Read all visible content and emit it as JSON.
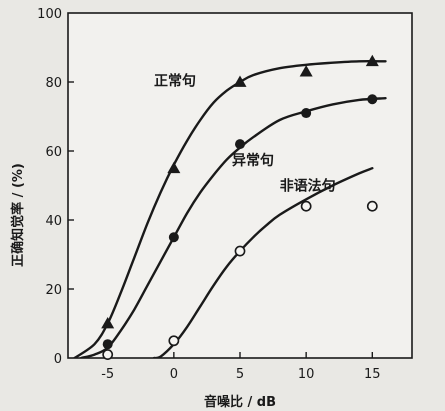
{
  "chart_data": {
    "type": "line",
    "xlabel": "音噪比 / dB",
    "ylabel": "正确知觉率 / (%)",
    "xlim": [
      -8,
      18
    ],
    "ylim": [
      0,
      100
    ],
    "xticks": [
      -5,
      0,
      5,
      10,
      15
    ],
    "yticks": [
      0,
      20,
      40,
      60,
      80,
      100
    ],
    "grid": false,
    "series": [
      {
        "name": "正常句",
        "marker": "triangle",
        "label_at": [
          -1.5,
          79
        ],
        "points": [
          [
            -5,
            10
          ],
          [
            0,
            55
          ],
          [
            5,
            80
          ],
          [
            10,
            83
          ],
          [
            15,
            86
          ]
        ],
        "curve": [
          [
            -7.5,
            0
          ],
          [
            -6,
            4
          ],
          [
            -5,
            10
          ],
          [
            -4,
            19
          ],
          [
            -3,
            29
          ],
          [
            -2,
            39
          ],
          [
            -1,
            48
          ],
          [
            0,
            56
          ],
          [
            1,
            63
          ],
          [
            2,
            69
          ],
          [
            3,
            74
          ],
          [
            4,
            77.5
          ],
          [
            5,
            80
          ],
          [
            6,
            82
          ],
          [
            8,
            84
          ],
          [
            10,
            85
          ],
          [
            12,
            85.6
          ],
          [
            14,
            86
          ],
          [
            16,
            86
          ]
        ]
      },
      {
        "name": "异常句",
        "marker": "filled-circle",
        "label_at": [
          4.4,
          56
        ],
        "points": [
          [
            -5,
            4
          ],
          [
            0,
            35
          ],
          [
            5,
            62
          ],
          [
            10,
            71
          ],
          [
            15,
            75
          ]
        ],
        "curve": [
          [
            -7,
            0
          ],
          [
            -6,
            1
          ],
          [
            -5,
            3
          ],
          [
            -4,
            8
          ],
          [
            -3,
            14
          ],
          [
            -2,
            21
          ],
          [
            -1,
            28
          ],
          [
            0,
            35
          ],
          [
            1,
            42
          ],
          [
            2,
            48
          ],
          [
            3,
            53
          ],
          [
            4,
            57.5
          ],
          [
            5,
            61
          ],
          [
            6,
            64
          ],
          [
            8,
            69
          ],
          [
            10,
            71.5
          ],
          [
            12,
            73.5
          ],
          [
            14,
            74.8
          ],
          [
            16,
            75.3
          ]
        ]
      },
      {
        "name": "非语法句",
        "marker": "open-circle",
        "label_at": [
          8,
          48.5
        ],
        "points": [
          [
            -5,
            1
          ],
          [
            0,
            5
          ],
          [
            5,
            31
          ],
          [
            10,
            44
          ],
          [
            15,
            44
          ]
        ],
        "curve": [
          [
            -1.5,
            0
          ],
          [
            -1,
            0.4
          ],
          [
            0,
            4
          ],
          [
            1,
            9
          ],
          [
            2,
            15
          ],
          [
            3,
            21
          ],
          [
            4,
            26.5
          ],
          [
            5,
            31
          ],
          [
            6,
            35
          ],
          [
            7,
            38.5
          ],
          [
            8,
            41.5
          ],
          [
            10,
            46
          ],
          [
            12,
            50
          ],
          [
            14,
            53.5
          ],
          [
            15,
            55
          ]
        ]
      }
    ]
  }
}
